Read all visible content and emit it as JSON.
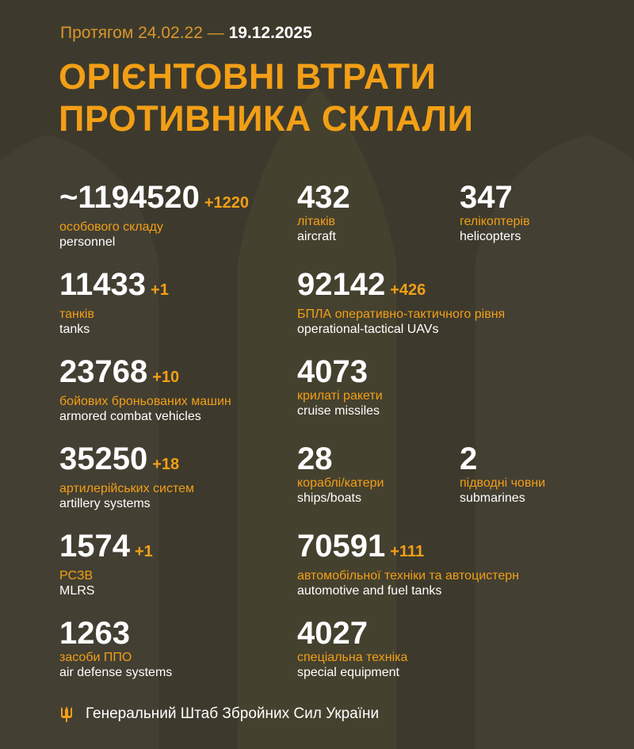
{
  "header": {
    "period_prefix": "Протягом 24.02.22 —",
    "period_end": "19.12.2025",
    "title_line1": "ОРІЄНТОВНІ ВТРАТИ",
    "title_line2": "ПРОТИВНИКА СКЛАЛИ"
  },
  "stats": [
    {
      "value": "~1194520",
      "delta": "+1220",
      "ua": "особового складу",
      "en": "personnel"
    },
    {
      "value": "432",
      "delta": "",
      "ua": "літаків",
      "en": "aircraft"
    },
    {
      "value": "347",
      "delta": "",
      "ua": "гелікоптерів",
      "en": "helicopters"
    },
    {
      "value": "11433",
      "delta": "+1",
      "ua": "танків",
      "en": "tanks"
    },
    {
      "value": "92142",
      "delta": "+426",
      "ua": "БПЛА оперативно-тактичного рівня",
      "en": "operational-tactical UAVs"
    },
    {
      "value": "23768",
      "delta": "+10",
      "ua": "бойових броньованих машин",
      "en": "armored combat vehicles"
    },
    {
      "value": "4073",
      "delta": "",
      "ua": "крилаті ракети",
      "en": "cruise missiles"
    },
    {
      "value": "35250",
      "delta": "+18",
      "ua": "артилерійських систем",
      "en": "artillery systems"
    },
    {
      "value": "28",
      "delta": "",
      "ua": "кораблі/катери",
      "en": "ships/boats"
    },
    {
      "value": "2",
      "delta": "",
      "ua": "підводні човни",
      "en": "submarines"
    },
    {
      "value": "1574",
      "delta": "+1",
      "ua": "РСЗВ",
      "en": "MLRS"
    },
    {
      "value": "70591",
      "delta": "+111",
      "ua": "автомобільної техніки та автоцистерн",
      "en": "automotive and fuel tanks"
    },
    {
      "value": "1263",
      "delta": "",
      "ua": "засоби ППО",
      "en": "air defense systems"
    },
    {
      "value": "4027",
      "delta": "",
      "ua": "спеціальна техніка",
      "en": "special equipment"
    }
  ],
  "footer": {
    "icon": "trident-icon",
    "text": "Генеральний Штаб Збройних Сил України"
  },
  "colors": {
    "background": "#3d3a2d",
    "accent": "#f29f16",
    "text": "#ffffff"
  }
}
